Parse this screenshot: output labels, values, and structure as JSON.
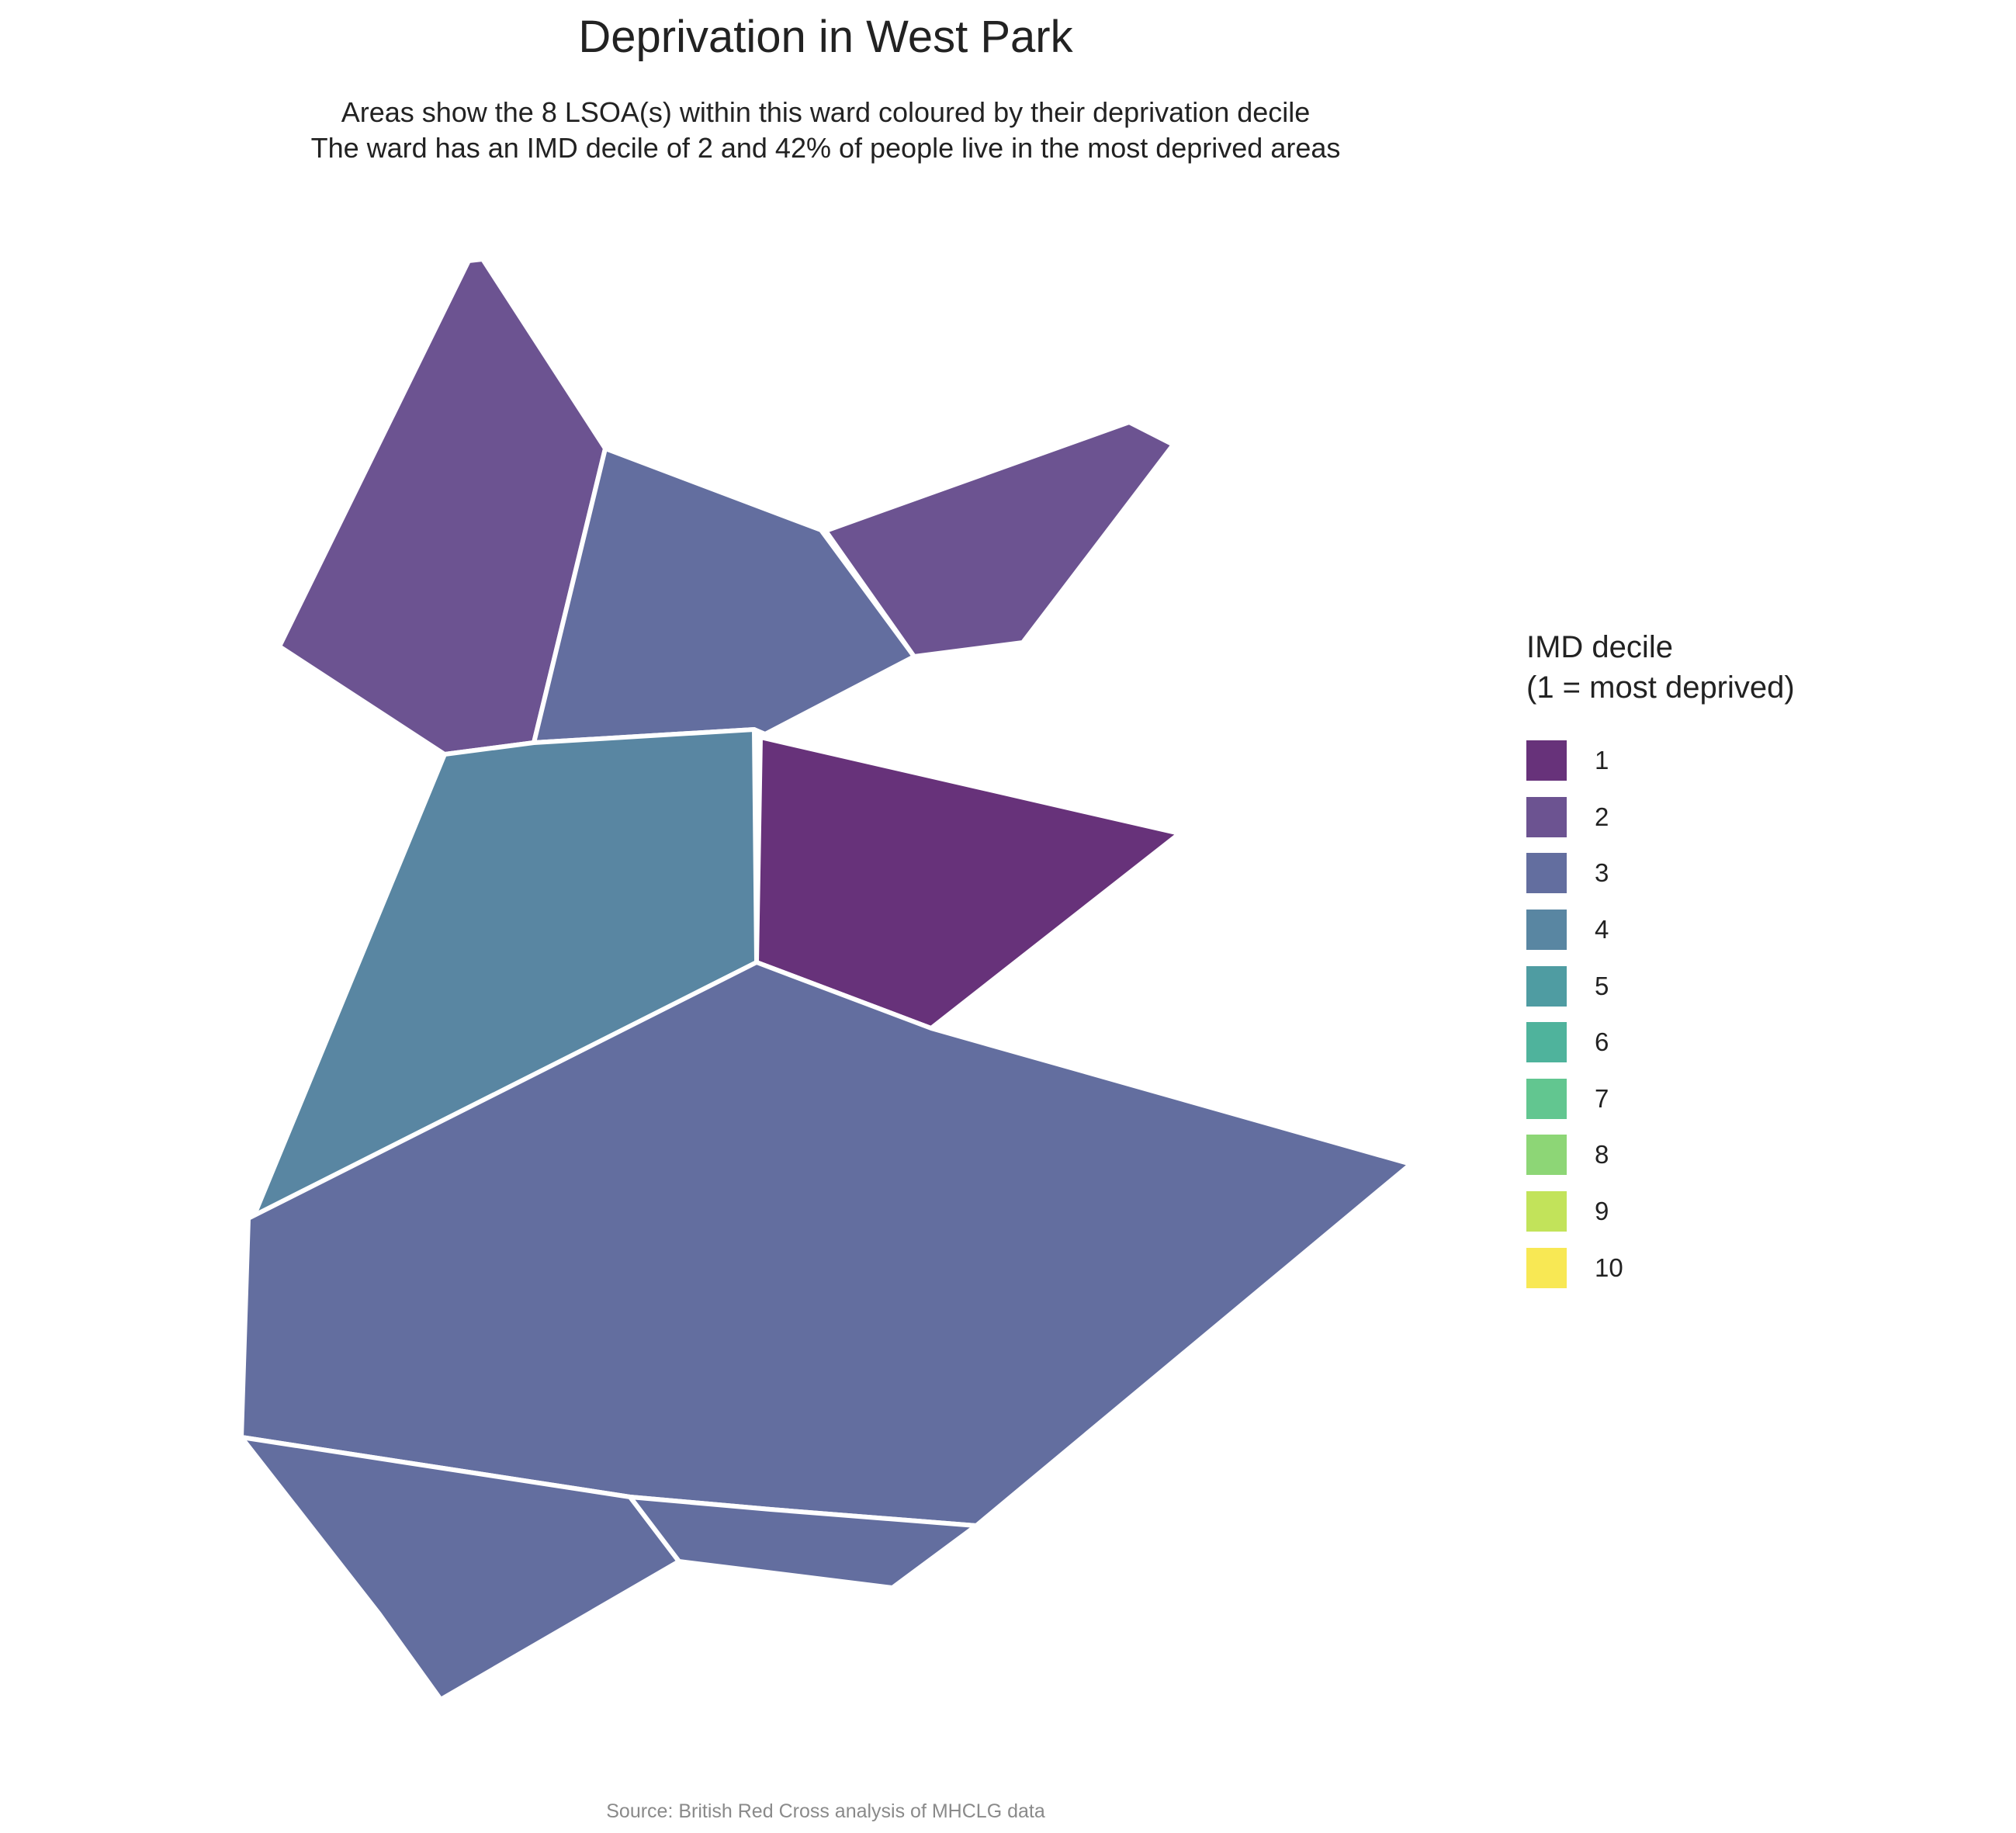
{
  "title": "Deprivation in West Park",
  "subtitle": [
    "Areas show the 8 LSOA(s) within this ward coloured by their deprivation decile",
    "The ward has an IMD decile of 2 and 42% of people live in the most deprived areas"
  ],
  "legend": {
    "title_lines": [
      "IMD decile",
      "(1 = most deprived)"
    ],
    "items": [
      {
        "label": "1",
        "color": "#67327a"
      },
      {
        "label": "2",
        "color": "#6c5391"
      },
      {
        "label": "3",
        "color": "#636e9f"
      },
      {
        "label": "4",
        "color": "#5986a2"
      },
      {
        "label": "5",
        "color": "#4f9ca2"
      },
      {
        "label": "6",
        "color": "#4fb39c"
      },
      {
        "label": "7",
        "color": "#62c690"
      },
      {
        "label": "8",
        "color": "#8dd676"
      },
      {
        "label": "9",
        "color": "#c2e35a"
      },
      {
        "label": "10",
        "color": "#f8e854"
      }
    ]
  },
  "map": {
    "areas": [
      {
        "id": "lsoa-north-west",
        "decile": 2
      },
      {
        "id": "lsoa-north-centre",
        "decile": 3
      },
      {
        "id": "lsoa-north-east",
        "decile": 2
      },
      {
        "id": "lsoa-west",
        "decile": 4
      },
      {
        "id": "lsoa-east",
        "decile": 1
      },
      {
        "id": "lsoa-central-large",
        "decile": 3
      },
      {
        "id": "lsoa-south-west",
        "decile": 3
      },
      {
        "id": "lsoa-south-strip",
        "decile": 3
      }
    ],
    "border_color": "#ffffff"
  },
  "caption": "Source: British Red Cross analysis of MHCLG data"
}
